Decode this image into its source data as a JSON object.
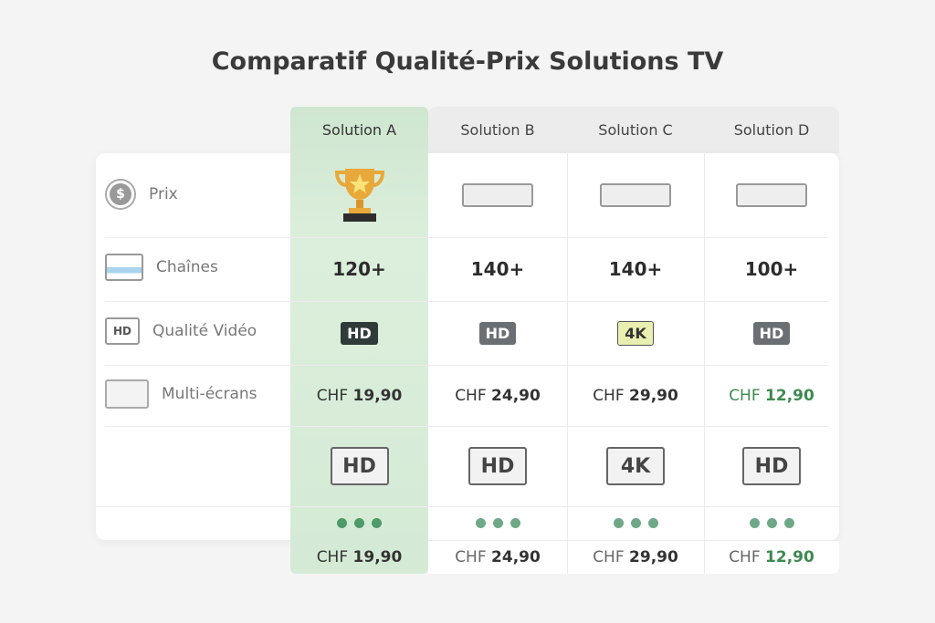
{
  "title": "Comparatif Qualité-Prix Solutions TV",
  "columns": [
    "Solution A",
    "Solution B",
    "Solution C",
    "Solution D"
  ],
  "rows": [
    {
      "label": "Prix",
      "icon": "dollar-icon"
    },
    {
      "label": "Chaînes",
      "icon": "screens-icon"
    },
    {
      "label": "Qualité Vidéo",
      "icon": "hd-tv-icon"
    },
    {
      "label": "Multi-écrans",
      "icon": "multi-device-icon"
    }
  ],
  "prix_icons": [
    "trophy-icon",
    "set-top-box-icon",
    "set-top-box-icon",
    "set-top-box-icon"
  ],
  "chaines": [
    "120+",
    "140+",
    "140+",
    "100+"
  ],
  "qualite": [
    "HD",
    "HD",
    "4K",
    "HD"
  ],
  "multi": [
    {
      "cur": "CHF",
      "val": "19,90"
    },
    {
      "cur": "CHF",
      "val": "24,90"
    },
    {
      "cur": "CHF",
      "val": "29,90"
    },
    {
      "cur": "CHF",
      "val": "12,90"
    }
  ],
  "device_icons": [
    "HD",
    "HD",
    "4K",
    "HD"
  ],
  "footer": [
    {
      "cur": "CHF",
      "val": "19,90"
    },
    {
      "cur": "CHF",
      "val": "24,90"
    },
    {
      "cur": "CHF",
      "val": "29,90"
    },
    {
      "cur": "CHF",
      "val": "12,90"
    }
  ],
  "colors": {
    "highlight": "#d4ead5",
    "best_price": "#3d8a4e",
    "badge_4k": "#e9efb0"
  }
}
